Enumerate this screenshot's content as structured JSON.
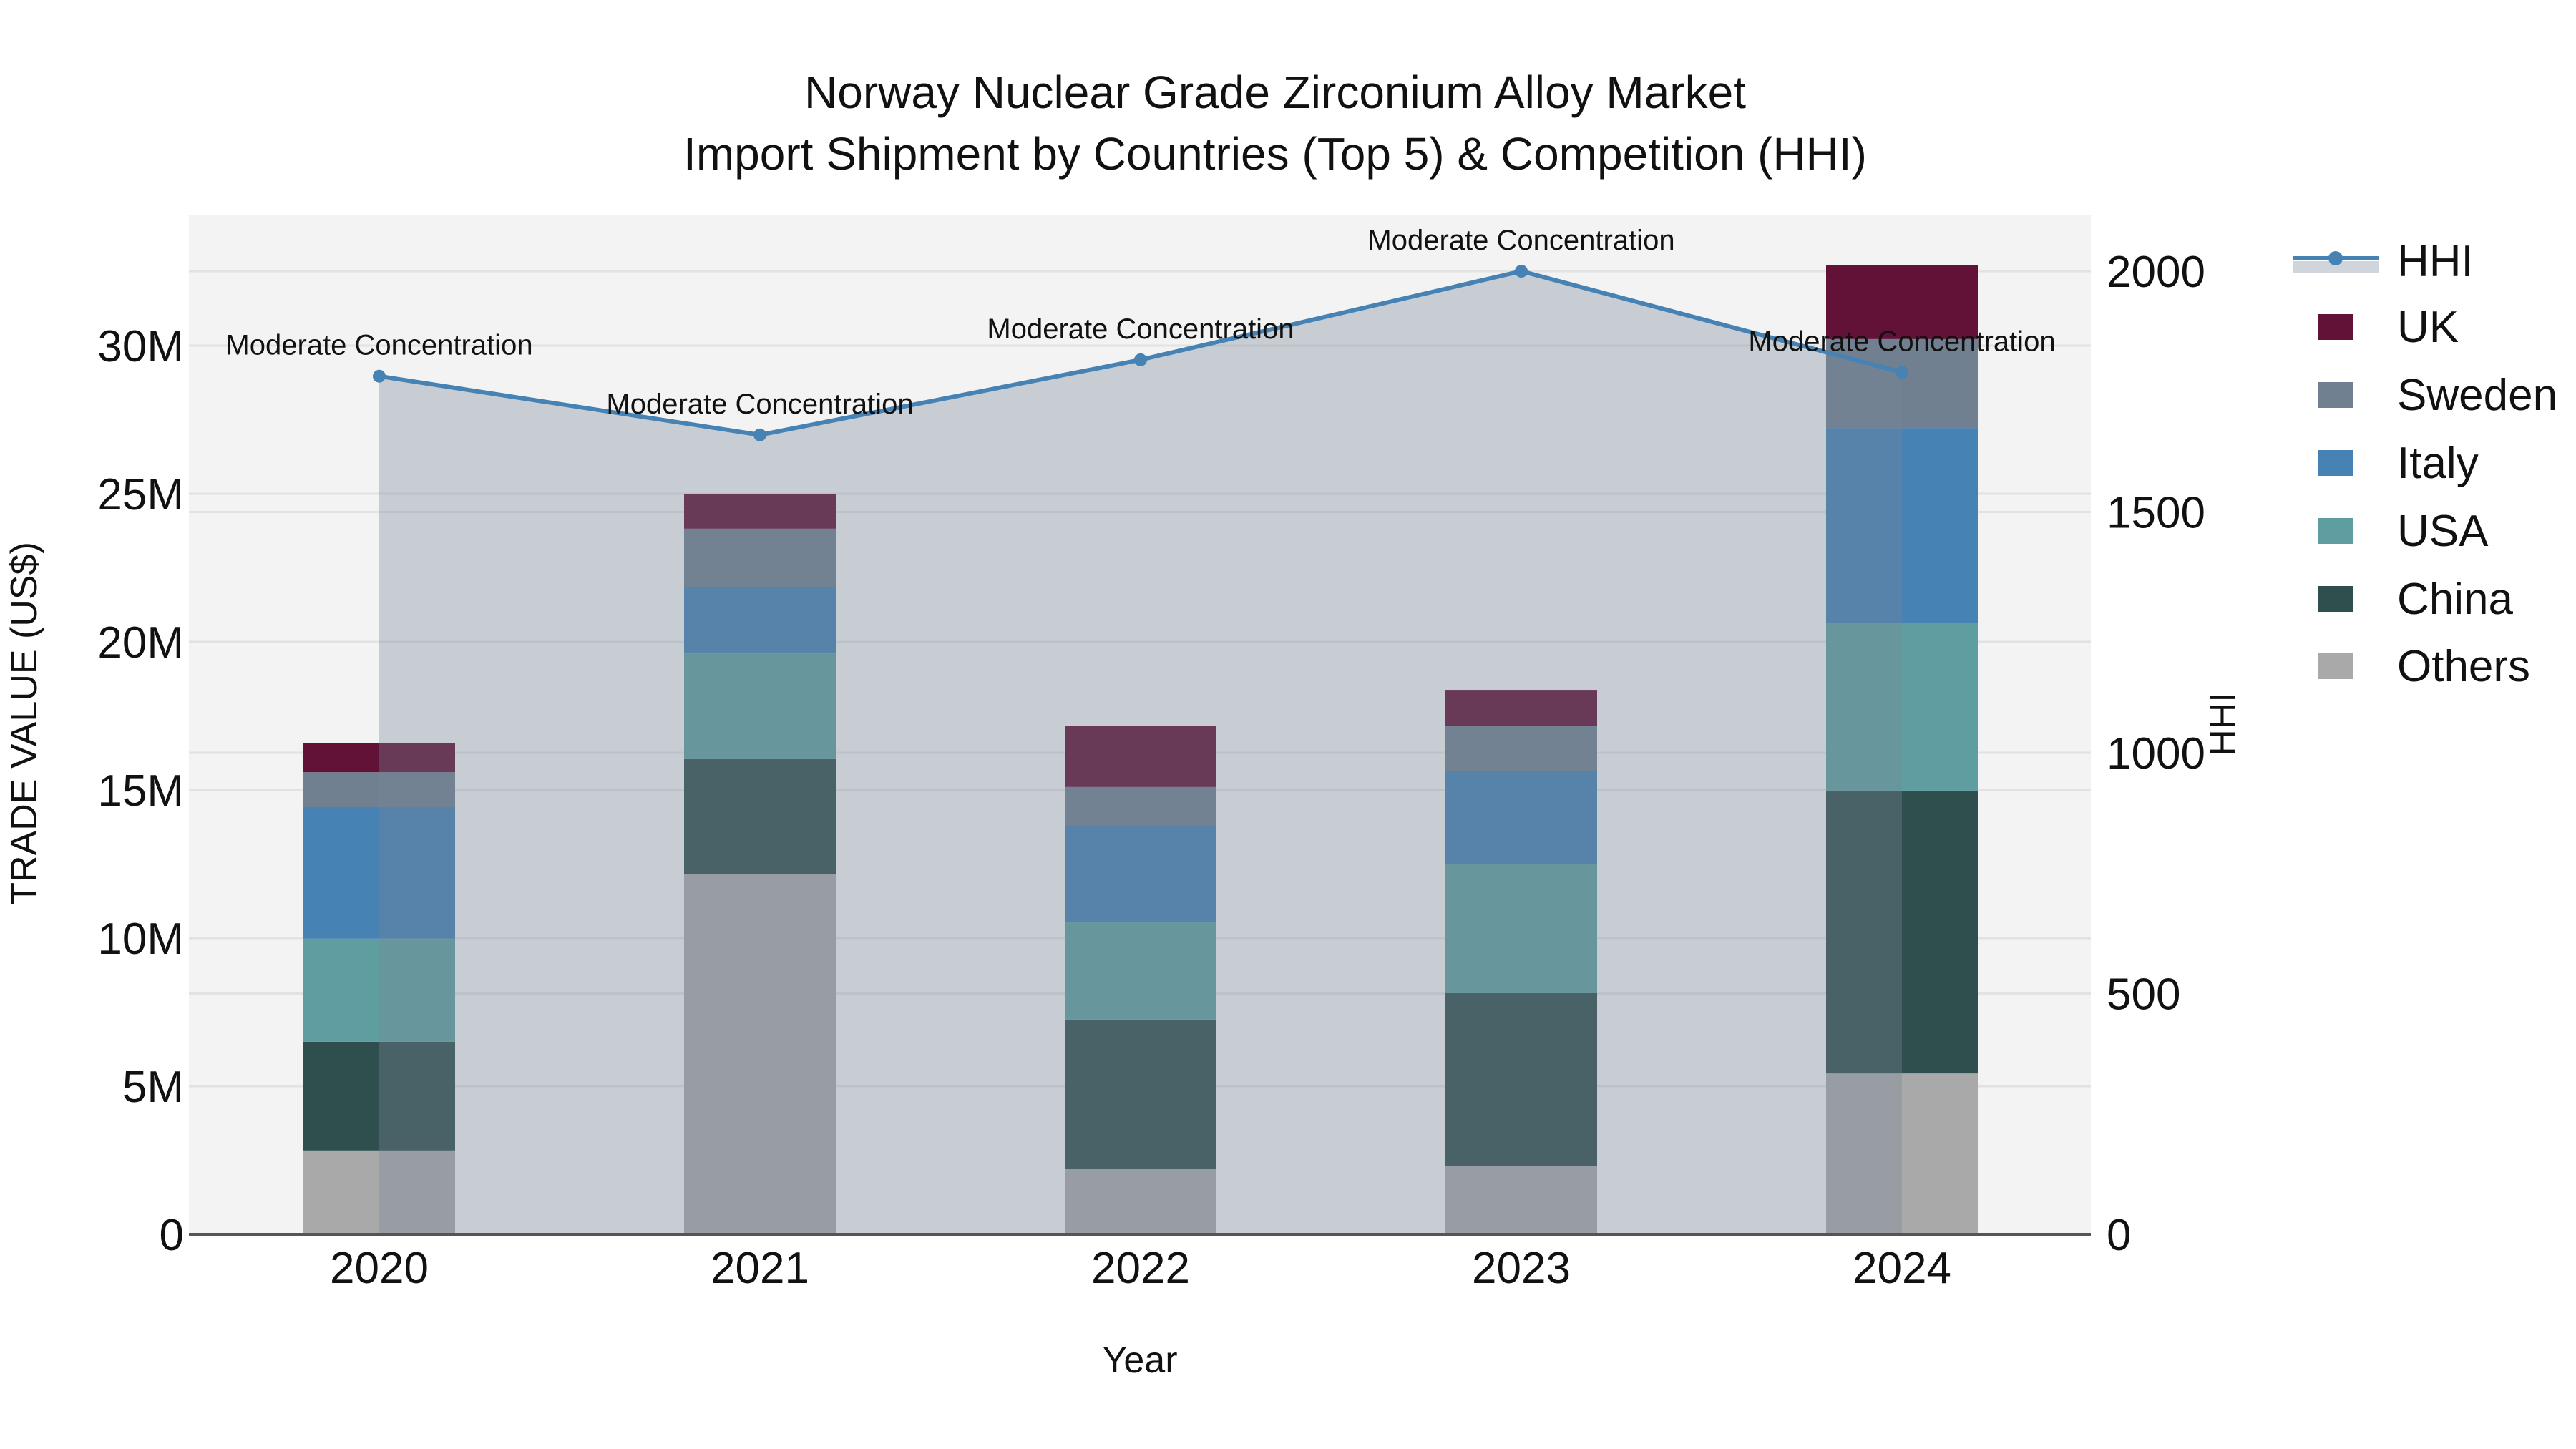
{
  "title": {
    "line1": "Norway Nuclear Grade Zirconium Alloy Market",
    "line2": "Import Shipment by Countries (Top 5) & Competition (HHI)"
  },
  "axes": {
    "x_title": "Year",
    "y_title": "TRADE VALUE (US$)",
    "y2_title": "HHI",
    "y_ticks": [
      "0",
      "5M",
      "10M",
      "15M",
      "20M",
      "25M",
      "30M"
    ],
    "y2_ticks": [
      "0",
      "500",
      "1000",
      "1500",
      "2000"
    ],
    "x_ticks": [
      "2020",
      "2021",
      "2022",
      "2023",
      "2024"
    ]
  },
  "legend": {
    "items": [
      {
        "label": "HHI",
        "type": "line",
        "color": "#4682b4"
      },
      {
        "label": "UK",
        "type": "bar",
        "color": "#621236"
      },
      {
        "label": "Sweden",
        "type": "bar",
        "color": "#708090"
      },
      {
        "label": "Italy",
        "type": "bar",
        "color": "#4682b4"
      },
      {
        "label": "USA",
        "type": "bar",
        "color": "#5f9ea0"
      },
      {
        "label": "China",
        "type": "bar",
        "color": "#2f4f4f"
      },
      {
        "label": "Others",
        "type": "bar",
        "color": "#a9a9a9"
      }
    ]
  },
  "colors": {
    "plot_bg": "#f3f3f3",
    "grid": "#e2e2e2",
    "hhi_line": "#4682b4",
    "hhi_fill": "rgba(119,136,153,0.35)",
    "axis_line": "#555555"
  },
  "chart_data": {
    "type": "bar",
    "title": "Norway Nuclear Grade Zirconium Alloy Market — Import Shipment by Countries (Top 5) & Competition (HHI)",
    "xlabel": "Year",
    "ylabel": "TRADE VALUE (US$)",
    "y2label": "HHI",
    "categories": [
      "2020",
      "2021",
      "2022",
      "2023",
      "2024"
    ],
    "stacked": true,
    "stack_order_bottom_to_top": [
      "Others",
      "China",
      "USA",
      "Italy",
      "Sweden",
      "UK"
    ],
    "series": [
      {
        "name": "Others",
        "type": "bar",
        "color": "#a9a9a9",
        "values": [
          2830000,
          12150000,
          2220000,
          2300000,
          5430000
        ]
      },
      {
        "name": "China",
        "type": "bar",
        "color": "#2f4f4f",
        "values": [
          3670000,
          3890000,
          5030000,
          5840000,
          9550000
        ]
      },
      {
        "name": "USA",
        "type": "bar",
        "color": "#5f9ea0",
        "values": [
          3480000,
          3570000,
          3280000,
          4350000,
          5650000
        ]
      },
      {
        "name": "Italy",
        "type": "bar",
        "color": "#4682b4",
        "values": [
          4440000,
          2250000,
          3240000,
          3160000,
          6590000
        ]
      },
      {
        "name": "Sweden",
        "type": "bar",
        "color": "#708090",
        "values": [
          1180000,
          1960000,
          1330000,
          1500000,
          3000000
        ]
      },
      {
        "name": "UK",
        "type": "bar",
        "color": "#621236",
        "values": [
          970000,
          1180000,
          2070000,
          1230000,
          2490000
        ]
      },
      {
        "name": "HHI",
        "type": "line",
        "axis": "y2",
        "fill": "tozeroy",
        "color": "#4682b4",
        "values": [
          1782,
          1660,
          1816,
          2000,
          1790
        ]
      }
    ],
    "annotations": [
      {
        "x": "2020",
        "text": "Moderate Concentration"
      },
      {
        "x": "2021",
        "text": "Moderate Concentration"
      },
      {
        "x": "2022",
        "text": "Moderate Concentration"
      },
      {
        "x": "2023",
        "text": "Moderate Concentration"
      },
      {
        "x": "2024",
        "text": "Moderate Concentration"
      }
    ],
    "ylim": [
      0,
      34400000
    ],
    "y2lim": [
      0,
      2117
    ],
    "grid": true,
    "legend_position": "right"
  }
}
